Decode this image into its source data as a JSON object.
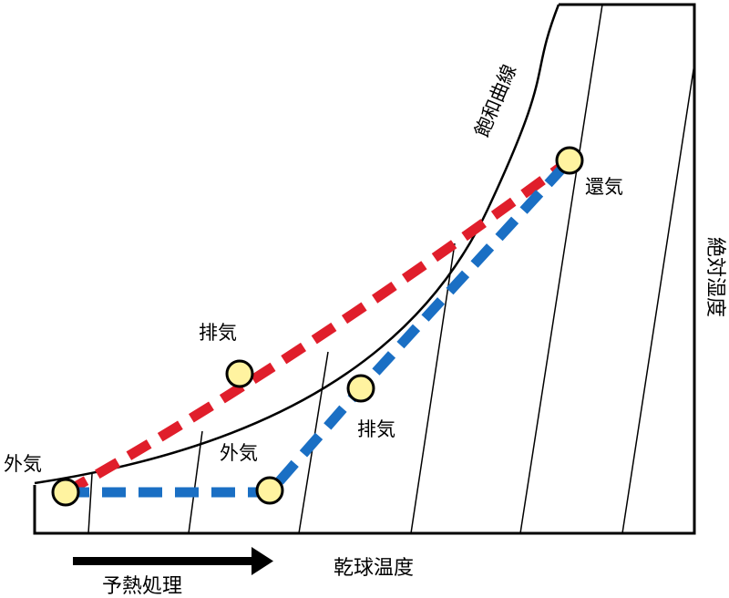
{
  "labels": {
    "saturation_curve": "飽和曲線",
    "absolute_humidity": "絶対湿度",
    "dry_bulb_temperature": "乾球温度",
    "preheat_process": "予熱処理",
    "outdoor_air_upper": "外気",
    "outdoor_air_lower": "外気",
    "exhaust_upper": "排気",
    "exhaust_lower": "排気",
    "return_air": "還気"
  },
  "colors": {
    "red_path": "#e01e2b",
    "blue_path": "#1a6fc4",
    "point_fill": "#fff3a0",
    "line": "#000000"
  },
  "paths": {
    "red": {
      "color": "red",
      "stroke_style": "dashed"
    },
    "blue": {
      "color": "blue",
      "stroke_style": "dashed"
    }
  }
}
